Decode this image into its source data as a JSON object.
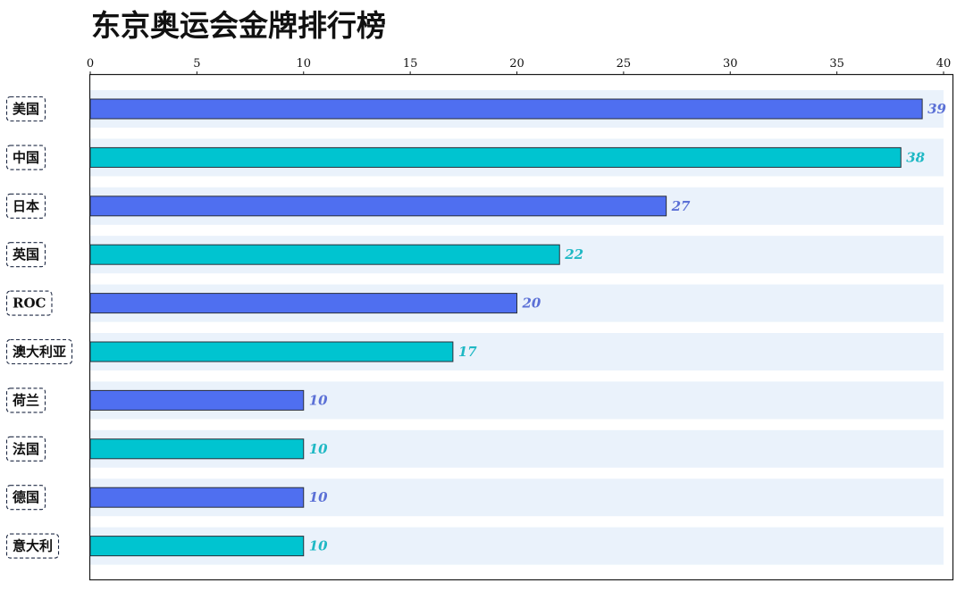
{
  "colors": {
    "series_a": "#4f6ff0",
    "series_b": "#00c4d0",
    "label_a": "#5b70d6",
    "label_b": "#1fb8c4",
    "row_band": "#eaf2fb",
    "bar_stroke": "#2a2f3a"
  },
  "chart_data": {
    "type": "bar",
    "orientation": "horizontal",
    "title": "东京奥运会金牌排行榜",
    "categories": [
      "美国",
      "中国",
      "日本",
      "英国",
      "ROC",
      "澳大利亚",
      "荷兰",
      "法国",
      "德国",
      "意大利"
    ],
    "values": [
      39,
      38,
      27,
      22,
      20,
      17,
      10,
      10,
      10,
      10
    ],
    "xlim": [
      0,
      40
    ],
    "xticks": [
      0,
      5,
      10,
      15,
      20,
      25,
      30,
      35,
      40
    ],
    "x_axis_position": "top",
    "grid": false,
    "data_labels": true
  }
}
